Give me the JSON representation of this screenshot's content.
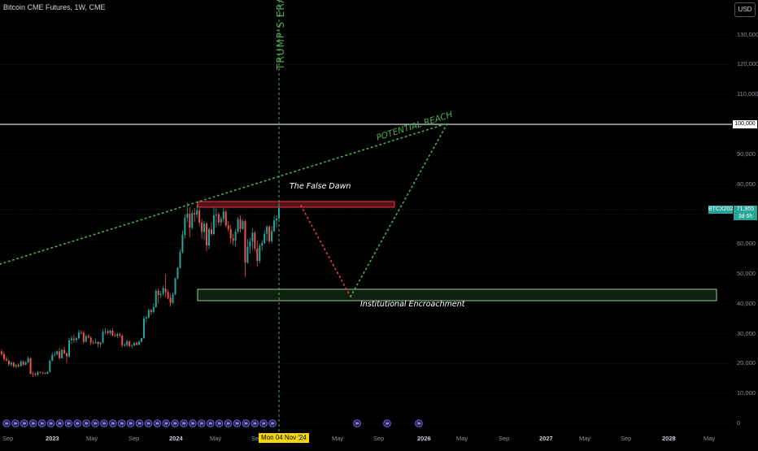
{
  "header": {
    "symbol_title": "Bitcoin CME Futures, 1W, CME",
    "currency_button": "USD"
  },
  "price_axis": {
    "ticks": [
      "130,000",
      "120,000",
      "110,000",
      "100,000",
      "90,000",
      "80,000",
      "70,000",
      "60,000",
      "50,000",
      "40,000",
      "30,000",
      "20,000",
      "10,000",
      "0"
    ],
    "tick_values": [
      130000,
      120000,
      110000,
      100000,
      90000,
      80000,
      70000,
      60000,
      50000,
      40000,
      30000,
      20000,
      10000,
      0
    ],
    "highlight_level": "100,000",
    "current_symbol": "BTCX2024",
    "current_price": "71,955",
    "countdown": "3d 6h"
  },
  "time_axis": {
    "labels": [
      "Sep",
      "2023",
      "May",
      "Sep",
      "2024",
      "May",
      "Sep",
      "Mon 04 Nov '24",
      "'25",
      "May",
      "Sep",
      "2026",
      "May",
      "Sep",
      "2027",
      "May",
      "Sep",
      "2028",
      "May"
    ],
    "bold_labels": [
      "2023",
      "2024",
      "2026",
      "2027",
      "2028"
    ],
    "crosshair_date": "Mon 04 Nov '24"
  },
  "annotations": {
    "vertical_line_label": "TRUMP'S ERA",
    "trendline_label": "POTENTIAL REACH",
    "resistance_label": "The False Dawn",
    "support_label": "Institutional Encroachment"
  },
  "colors": {
    "up": "#26a69a",
    "down": "#ef5350",
    "green_anno": "#4caf50",
    "red_anno": "#f23645",
    "event_badge": "#6f67f0",
    "price_tag": "#26a69a",
    "highlight": "#f5d60a"
  },
  "events": {
    "count": 35,
    "icon": "calendar-event-icon"
  },
  "candles": [
    [
      24000,
      24800,
      22500,
      23200
    ],
    [
      23200,
      24000,
      20800,
      21500
    ],
    [
      21500,
      22400,
      20900,
      21000
    ],
    [
      21000,
      21300,
      19200,
      19700
    ],
    [
      19700,
      20800,
      19000,
      20300
    ],
    [
      20300,
      20500,
      18600,
      19000
    ],
    [
      19000,
      19800,
      18400,
      19500
    ],
    [
      19500,
      20100,
      18600,
      19100
    ],
    [
      19100,
      21200,
      19000,
      20700
    ],
    [
      20700,
      21100,
      19300,
      19600
    ],
    [
      19600,
      20800,
      19400,
      20400
    ],
    [
      20400,
      22400,
      20100,
      21800
    ],
    [
      21800,
      22100,
      16300,
      16600
    ],
    [
      16600,
      17300,
      15500,
      16500
    ],
    [
      16500,
      17200,
      15700,
      16200
    ],
    [
      16200,
      17600,
      16000,
      17100
    ],
    [
      17100,
      17400,
      16800,
      16900
    ],
    [
      16900,
      17200,
      16500,
      16800
    ],
    [
      16800,
      17100,
      16400,
      16600
    ],
    [
      16600,
      17400,
      16500,
      17200
    ],
    [
      17200,
      21400,
      17100,
      20900
    ],
    [
      20900,
      23700,
      20800,
      22900
    ],
    [
      22900,
      23900,
      22400,
      23100
    ],
    [
      23100,
      24400,
      22700,
      24100
    ],
    [
      24100,
      25300,
      21400,
      21800
    ],
    [
      21800,
      24900,
      21700,
      24600
    ],
    [
      24600,
      25700,
      23200,
      23400
    ],
    [
      23400,
      23700,
      20100,
      22400
    ],
    [
      22400,
      28600,
      22000,
      27800
    ],
    [
      27800,
      29300,
      26500,
      28300
    ],
    [
      28300,
      29700,
      26900,
      27900
    ],
    [
      27900,
      28900,
      27100,
      28500
    ],
    [
      28500,
      31300,
      28000,
      30400
    ],
    [
      30400,
      31200,
      29700,
      30300
    ],
    [
      30300,
      31000,
      26700,
      27300
    ],
    [
      27300,
      29600,
      27100,
      29200
    ],
    [
      29200,
      29800,
      28400,
      28700
    ],
    [
      28700,
      29100,
      26100,
      27000
    ],
    [
      27000,
      27800,
      26500,
      26900
    ],
    [
      26900,
      28400,
      26600,
      27200
    ],
    [
      27200,
      27500,
      25400,
      26500
    ],
    [
      26500,
      27300,
      25500,
      27000
    ],
    [
      27000,
      31600,
      26800,
      30600
    ],
    [
      30600,
      31800,
      29900,
      30800
    ],
    [
      30800,
      31500,
      29700,
      30200
    ],
    [
      30200,
      31400,
      29500,
      31000
    ],
    [
      31000,
      31900,
      29100,
      29400
    ],
    [
      29400,
      30100,
      28900,
      29200
    ],
    [
      29200,
      30400,
      28500,
      29800
    ],
    [
      29800,
      30300,
      28700,
      29300
    ],
    [
      29300,
      29800,
      25400,
      26100
    ],
    [
      26100,
      26800,
      25700,
      26200
    ],
    [
      26200,
      28000,
      25600,
      27400
    ],
    [
      27400,
      27700,
      25400,
      25900
    ],
    [
      25900,
      26500,
      25100,
      26100
    ],
    [
      26100,
      27100,
      25800,
      26900
    ],
    [
      26900,
      27400,
      26000,
      26300
    ],
    [
      26300,
      27900,
      26100,
      27300
    ],
    [
      27300,
      28600,
      27000,
      28500
    ],
    [
      28500,
      35900,
      28300,
      35100
    ],
    [
      35100,
      36100,
      33800,
      35400
    ],
    [
      35400,
      38400,
      35100,
      37900
    ],
    [
      37900,
      38300,
      36300,
      37200
    ],
    [
      37200,
      40100,
      36900,
      38900
    ],
    [
      38900,
      44900,
      38600,
      44300
    ],
    [
      44300,
      45100,
      40100,
      42900
    ],
    [
      42900,
      44300,
      41900,
      43400
    ],
    [
      43400,
      46100,
      42600,
      45200
    ],
    [
      45200,
      49900,
      42100,
      43900
    ],
    [
      43900,
      44700,
      41400,
      42000
    ],
    [
      42000,
      43300,
      39100,
      40300
    ],
    [
      40300,
      43800,
      40000,
      43100
    ],
    [
      43100,
      48800,
      42900,
      48500
    ],
    [
      48500,
      52300,
      48100,
      52000
    ],
    [
      52000,
      58100,
      51700,
      57200
    ],
    [
      57200,
      64500,
      56800,
      63000
    ],
    [
      63000,
      69900,
      61900,
      68700
    ],
    [
      68700,
      73800,
      67200,
      70100
    ],
    [
      70100,
      72300,
      62100,
      65400
    ],
    [
      65400,
      71200,
      64800,
      70300
    ],
    [
      70300,
      72000,
      67400,
      69800
    ],
    [
      69800,
      73100,
      68600,
      71200
    ],
    [
      71200,
      72000,
      66100,
      67100
    ],
    [
      67100,
      68300,
      61800,
      64000
    ],
    [
      64000,
      67700,
      61400,
      66800
    ],
    [
      66800,
      67400,
      57600,
      59500
    ],
    [
      59500,
      65600,
      58300,
      64900
    ],
    [
      64900,
      67400,
      62600,
      63300
    ],
    [
      63300,
      72100,
      62900,
      69600
    ],
    [
      69600,
      71900,
      65400,
      69900
    ],
    [
      69900,
      70600,
      66100,
      67200
    ],
    [
      67200,
      69200,
      66000,
      68400
    ],
    [
      68400,
      72000,
      67300,
      70800
    ],
    [
      70800,
      71400,
      65600,
      66200
    ],
    [
      66200,
      67600,
      64200,
      65000
    ],
    [
      65000,
      66400,
      60200,
      61900
    ],
    [
      61900,
      63400,
      59600,
      61100
    ],
    [
      61100,
      64900,
      59200,
      64100
    ],
    [
      64100,
      69000,
      63500,
      68300
    ],
    [
      68300,
      69500,
      63800,
      65000
    ],
    [
      65000,
      68300,
      64700,
      67600
    ],
    [
      67600,
      68100,
      49000,
      53800
    ],
    [
      53800,
      61700,
      53400,
      59100
    ],
    [
      59100,
      62000,
      56700,
      60800
    ],
    [
      60800,
      65200,
      58200,
      63800
    ],
    [
      63800,
      64300,
      57700,
      58500
    ],
    [
      58500,
      61200,
      52500,
      54300
    ],
    [
      54300,
      60200,
      53500,
      59400
    ],
    [
      59400,
      61300,
      57700,
      60300
    ],
    [
      60300,
      64600,
      60000,
      63400
    ],
    [
      63400,
      66300,
      61000,
      65800
    ],
    [
      65800,
      66200,
      60200,
      60900
    ],
    [
      60900,
      65900,
      60200,
      64300
    ],
    [
      64300,
      69400,
      63900,
      67900
    ],
    [
      67900,
      69600,
      65700,
      68500
    ],
    [
      68500,
      73700,
      68100,
      72000
    ]
  ]
}
